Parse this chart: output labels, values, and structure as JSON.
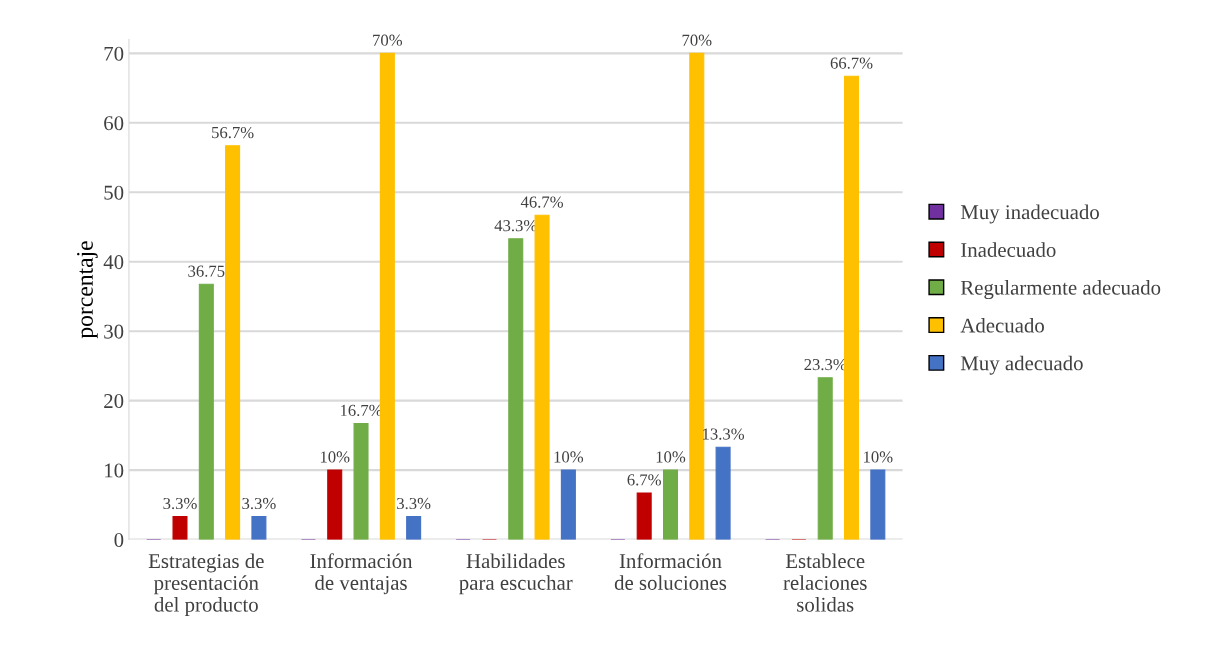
{
  "chart_data": {
    "type": "bar",
    "ylabel": "porcentaje",
    "categories": [
      "Estrategias de\npresentación\ndel producto",
      "Información\nde ventajas",
      "Habilidades\npara escuchar",
      "Información\nde soluciones",
      "Establece\nrelaciones\nsolidas"
    ],
    "series": [
      {
        "name": "Muy inadecuado",
        "color": "#7030a0",
        "values": [
          0,
          0,
          0,
          0,
          0
        ],
        "value_labels": [
          null,
          null,
          null,
          null,
          null
        ]
      },
      {
        "name": "Inadecuado",
        "color": "#c00000",
        "values": [
          3.3,
          10,
          0,
          6.7,
          0
        ],
        "value_labels": [
          "3.3%",
          "10%",
          null,
          "6.7%",
          null
        ]
      },
      {
        "name": "Regularmente adecuado",
        "color": "#70ad47",
        "values": [
          36.75,
          16.7,
          43.3,
          10,
          23.3
        ],
        "value_labels": [
          "36.75",
          "16.7%",
          "43.3%",
          "10%",
          "23.3%"
        ]
      },
      {
        "name": "Adecuado",
        "color": "#ffc000",
        "values": [
          56.7,
          70,
          46.7,
          70,
          66.7
        ],
        "value_labels": [
          "56.7%",
          "70%",
          "46.7%",
          "70%",
          "66.7%"
        ]
      },
      {
        "name": "Muy adecuado",
        "color": "#4472c4",
        "values": [
          3.3,
          3.3,
          10,
          13.3,
          10
        ],
        "value_labels": [
          "3.3%",
          "3.3%",
          "10%",
          "13.3%",
          "10%"
        ]
      }
    ],
    "ylim": [
      0,
      72
    ],
    "yticks": [
      0,
      10,
      20,
      30,
      40,
      50,
      60,
      70
    ],
    "grid": "y",
    "legend": "right"
  }
}
